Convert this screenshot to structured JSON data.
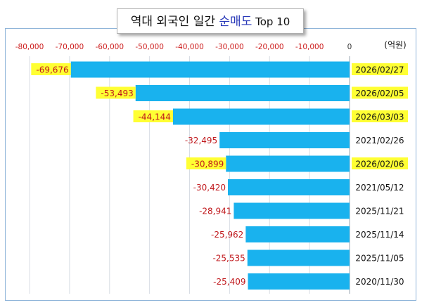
{
  "title": {
    "prefix": "역대 외국인 일간 ",
    "highlight": "순매도",
    "suffix": " Top 10",
    "highlight_color": "#2838b8"
  },
  "unit_label": "(억원)",
  "colors": {
    "bar": "#19b2ee",
    "tick_label": "#cc1a1a",
    "value_label": "#c0181c",
    "highlight": "#ffff33",
    "frame_border": "#8fb4d9",
    "grid": "#d8dde4"
  },
  "chart_data": {
    "type": "bar",
    "orientation": "horizontal",
    "xlim": [
      -80000,
      0
    ],
    "xticks": [
      -80000,
      -70000,
      -60000,
      -50000,
      -40000,
      -30000,
      -20000,
      -10000,
      0
    ],
    "xtick_labels": [
      "-80,000",
      "-70,000",
      "-60,000",
      "-50,000",
      "-40,000",
      "-30,000",
      "-20,000",
      "-10,000",
      "0"
    ],
    "categories": [
      "2026/02/27",
      "2026/02/05",
      "2026/03/03",
      "2021/02/26",
      "2026/02/06",
      "2021/05/12",
      "2025/11/21",
      "2025/11/14",
      "2025/11/05",
      "2020/11/30"
    ],
    "values": [
      -69676,
      -53493,
      -44144,
      -32495,
      -30899,
      -30420,
      -28941,
      -25962,
      -25535,
      -25409
    ],
    "value_labels": [
      "-69,676",
      "-53,493",
      "-44,144",
      "-32,495",
      "-30,899",
      "-30,420",
      "-28,941",
      "-25,962",
      "-25,535",
      "-25,409"
    ],
    "highlighted": [
      true,
      true,
      true,
      false,
      true,
      false,
      false,
      false,
      false,
      false
    ],
    "grid": true,
    "axis_position": "top"
  }
}
